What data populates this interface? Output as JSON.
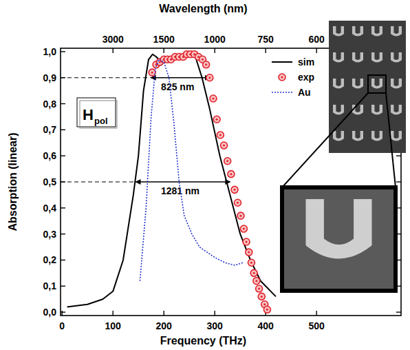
{
  "chart_data": {
    "type": "line",
    "xlabel": "Frequency (THz)",
    "ylabel": "Absorption (linear)",
    "x2label": "Wavelength (nm)",
    "xlim": [
      -3,
      666
    ],
    "ylim": [
      -0.013,
      1.013
    ],
    "xticks": [
      0,
      100,
      200,
      300,
      400,
      500
    ],
    "x2ticks": [
      {
        "value": 100,
        "label": "3000"
      },
      {
        "value": 200,
        "label": "1500"
      },
      {
        "value": 300,
        "label": "1000"
      },
      {
        "value": 400,
        "label": "750"
      },
      {
        "value": 500,
        "label": "600"
      }
    ],
    "yticks": [
      {
        "value": 0,
        "label": "0,0"
      },
      {
        "value": 0.1,
        "label": "0,1"
      },
      {
        "value": 0.2,
        "label": "0,2"
      },
      {
        "value": 0.3,
        "label": "0,3"
      },
      {
        "value": 0.4,
        "label": "0,4"
      },
      {
        "value": 0.5,
        "label": "0,5"
      },
      {
        "value": 0.6,
        "label": "0,6"
      },
      {
        "value": 0.7,
        "label": "0,7"
      },
      {
        "value": 0.8,
        "label": "0,8"
      },
      {
        "value": 0.9,
        "label": "0,9"
      },
      {
        "value": 1.0,
        "label": "1,0"
      }
    ],
    "grid": false,
    "legend": "upper right",
    "series": [
      {
        "name": "sim",
        "color": "#000000",
        "type": "line",
        "line_style": "solid",
        "x": [
          10,
          50,
          80,
          100,
          120,
          140,
          150,
          160,
          170,
          178,
          185,
          195,
          210,
          230,
          250,
          262,
          275,
          290,
          310,
          330,
          350,
          370,
          390,
          410,
          420
        ],
        "values": [
          0.02,
          0.03,
          0.05,
          0.08,
          0.2,
          0.45,
          0.6,
          0.85,
          0.97,
          0.99,
          0.98,
          0.96,
          0.96,
          0.98,
          0.99,
          0.98,
          0.9,
          0.78,
          0.6,
          0.45,
          0.3,
          0.2,
          0.12,
          0.08,
          0.06
        ]
      },
      {
        "name": "exp",
        "color": "#e0202a",
        "type": "scatter",
        "marker": "circle",
        "x": [
          177,
          185,
          192,
          200,
          207,
          214,
          222,
          230,
          238,
          245,
          252,
          260,
          268,
          276,
          283,
          290,
          297,
          304,
          311,
          318,
          325,
          332,
          339,
          345,
          351,
          357,
          362,
          367,
          372,
          377,
          382,
          387,
          392,
          398,
          403
        ],
        "values": [
          0.92,
          0.95,
          0.96,
          0.97,
          0.97,
          0.97,
          0.98,
          0.98,
          0.98,
          0.99,
          0.99,
          0.99,
          0.98,
          0.97,
          0.95,
          0.9,
          0.82,
          0.74,
          0.68,
          0.64,
          0.58,
          0.53,
          0.47,
          0.42,
          0.37,
          0.32,
          0.27,
          0.23,
          0.19,
          0.15,
          0.12,
          0.09,
          0.06,
          0.03,
          0.01
        ]
      },
      {
        "name": "Au",
        "color": "#2233cc",
        "type": "line",
        "line_style": "dotted",
        "x": [
          153,
          165,
          175,
          183,
          190,
          200,
          210,
          220,
          230,
          240,
          255,
          270,
          285,
          300,
          320,
          340,
          355
        ],
        "values": [
          0.12,
          0.4,
          0.75,
          0.93,
          0.97,
          0.96,
          0.9,
          0.72,
          0.5,
          0.37,
          0.3,
          0.25,
          0.23,
          0.21,
          0.19,
          0.18,
          0.19
        ]
      }
    ],
    "annotations": [
      {
        "text": "825 nm",
        "y": 0.9,
        "x_from": 175,
        "x_to": 290
      },
      {
        "text": "1281 nm",
        "y": 0.5,
        "x_from": 145,
        "x_to": 330
      }
    ],
    "label_box": {
      "text": "H",
      "subscript": "pol"
    }
  }
}
